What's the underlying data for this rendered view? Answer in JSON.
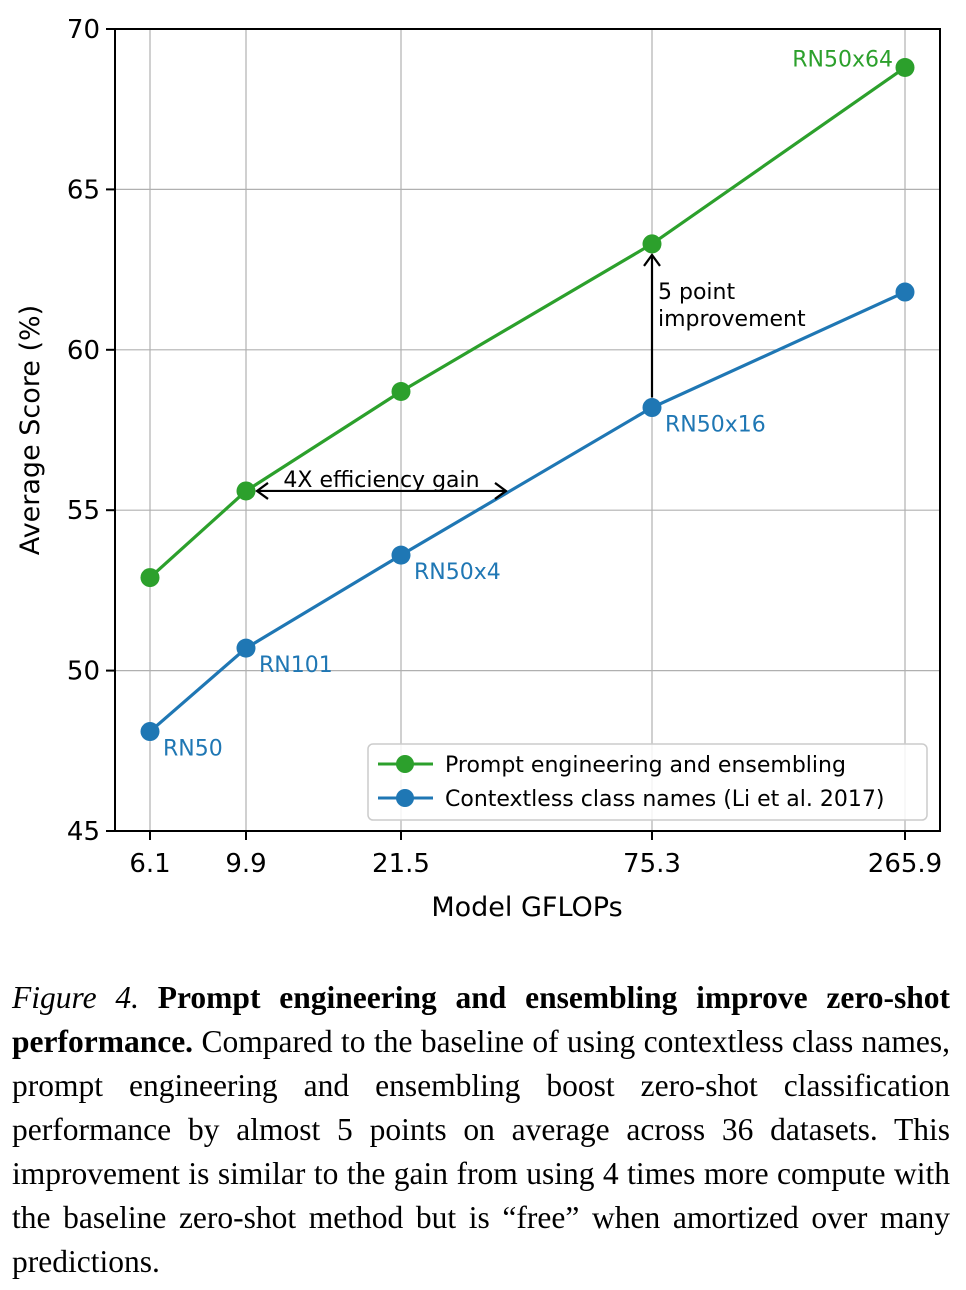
{
  "chart_data": {
    "type": "line",
    "categories": [
      "6.1",
      "9.9",
      "21.5",
      "75.3",
      "265.9"
    ],
    "series": [
      {
        "name": "Prompt engineering and ensembling",
        "color": "#2ca02c",
        "values": [
          52.9,
          55.6,
          58.7,
          63.3,
          68.8
        ]
      },
      {
        "name": "Contextless class names (Li et al. 2017)",
        "color": "#1f77b4",
        "values": [
          48.1,
          50.7,
          53.6,
          58.2,
          61.8
        ]
      }
    ],
    "point_labels": [
      {
        "series": 1,
        "index": 0,
        "text": "RN50"
      },
      {
        "series": 1,
        "index": 1,
        "text": "RN101"
      },
      {
        "series": 1,
        "index": 2,
        "text": "RN50x4"
      },
      {
        "series": 1,
        "index": 3,
        "text": "RN50x16"
      },
      {
        "series": 0,
        "index": 4,
        "text": "RN50x64"
      }
    ],
    "annotations": {
      "efficiency": "4X efficiency gain",
      "improvement_line1": "5 point",
      "improvement_line2": "improvement"
    },
    "xlabel": "Model GFLOPs",
    "ylabel": "Average Score (%)",
    "ylim": [
      45,
      70
    ],
    "yticks": [
      45,
      50,
      55,
      60,
      65,
      70
    ],
    "grid": true,
    "legend_position": "bottom-right"
  },
  "caption": {
    "label": "Figure 4.",
    "title": "Prompt engineering and ensembling improve zero-shot performance.",
    "text": "Compared to the baseline of using contextless class names, prompt engineering and ensembling boost zero-shot classification performance by almost 5 points on average across 36 datasets. This improvement is similar to the gain from using 4 times more compute with the baseline zero-shot method but is “free” when amortized over many predictions."
  }
}
